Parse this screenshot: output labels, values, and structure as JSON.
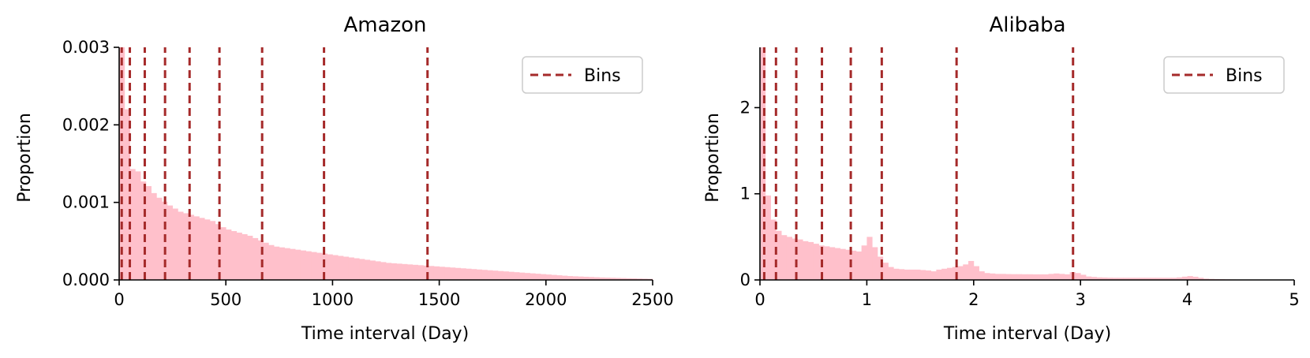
{
  "colors": {
    "histogram": "#ffc0cb",
    "bins": "#a52a2a",
    "axis": "#000000"
  },
  "chart_data": [
    {
      "type": "bar",
      "title": "Amazon",
      "xlabel": "Time interval (Day)",
      "ylabel": "Proportion",
      "xlim": [
        0,
        2500
      ],
      "ylim": [
        0,
        0.003
      ],
      "grid": false,
      "xticks": [
        0,
        500,
        1000,
        1500,
        2000,
        2500
      ],
      "yticks": [
        0.0,
        0.001,
        0.002,
        0.003
      ],
      "xtick_labels": [
        "0",
        "500",
        "1000",
        "1500",
        "2000",
        "2500"
      ],
      "ytick_labels": [
        "0.000",
        "0.001",
        "0.002",
        "0.003"
      ],
      "bin_width": 25,
      "bin_edges_start": 0,
      "histogram": [
        0.003,
        0.0022,
        0.00143,
        0.0014,
        0.00127,
        0.00121,
        0.00112,
        0.00106,
        0.00101,
        0.00096,
        0.00092,
        0.00088,
        0.00086,
        0.00084,
        0.00082,
        0.0008,
        0.00078,
        0.00076,
        0.00072,
        0.00068,
        0.00065,
        0.00063,
        0.00061,
        0.00059,
        0.00057,
        0.00054,
        0.00051,
        0.00048,
        0.00045,
        0.00043,
        0.00042,
        0.00041,
        0.0004,
        0.00039,
        0.00038,
        0.00037,
        0.00036,
        0.00035,
        0.00034,
        0.00033,
        0.00032,
        0.00031,
        0.0003,
        0.00029,
        0.00028,
        0.00027,
        0.00026,
        0.00025,
        0.00024,
        0.00023,
        0.00022,
        0.000215,
        0.00021,
        0.000205,
        0.0002,
        0.000195,
        0.00019,
        0.000185,
        0.00018,
        0.000175,
        0.00017,
        0.000165,
        0.00016,
        0.000155,
        0.00015,
        0.000145,
        0.00014,
        0.000135,
        0.00013,
        0.000125,
        0.00012,
        0.000115,
        0.00011,
        0.000105,
        0.0001,
        9.5e-05,
        9e-05,
        8.5e-05,
        8e-05,
        7.5e-05,
        7e-05,
        6.5e-05,
        6e-05,
        5.5e-05,
        5e-05,
        4.7e-05,
        4.4e-05,
        4.1e-05,
        3.8e-05,
        3.5e-05,
        3.2e-05,
        3e-05,
        2.8e-05,
        2.6e-05,
        2.4e-05,
        2.2e-05,
        2e-05,
        1.8e-05,
        1.6e-05,
        1.4e-05
      ],
      "bins_lines": [
        12,
        50,
        120,
        215,
        330,
        470,
        670,
        960,
        1445
      ],
      "legend": {
        "label": "Bins",
        "position": "upper-right"
      }
    },
    {
      "type": "bar",
      "title": "Alibaba",
      "xlabel": "Time interval (Day)",
      "ylabel": "Proportion",
      "xlim": [
        0,
        5
      ],
      "ylim": [
        0,
        2.7
      ],
      "grid": false,
      "xticks": [
        0,
        1,
        2,
        3,
        4,
        5
      ],
      "yticks": [
        0,
        1,
        2
      ],
      "xtick_labels": [
        "0",
        "1",
        "2",
        "3",
        "4",
        "5"
      ],
      "ytick_labels": [
        "0",
        "1",
        "2"
      ],
      "bin_width": 0.05,
      "bin_edges_start": 0,
      "histogram": [
        2.7,
        0.98,
        0.7,
        0.57,
        0.52,
        0.5,
        0.48,
        0.47,
        0.45,
        0.44,
        0.42,
        0.4,
        0.39,
        0.38,
        0.37,
        0.36,
        0.35,
        0.34,
        0.33,
        0.4,
        0.5,
        0.38,
        0.27,
        0.2,
        0.15,
        0.13,
        0.125,
        0.12,
        0.12,
        0.12,
        0.115,
        0.11,
        0.1,
        0.12,
        0.13,
        0.14,
        0.15,
        0.16,
        0.18,
        0.22,
        0.16,
        0.1,
        0.08,
        0.075,
        0.07,
        0.07,
        0.068,
        0.067,
        0.067,
        0.066,
        0.066,
        0.065,
        0.065,
        0.065,
        0.07,
        0.075,
        0.07,
        0.065,
        0.09,
        0.08,
        0.06,
        0.04,
        0.035,
        0.03,
        0.028,
        0.026,
        0.025,
        0.025,
        0.025,
        0.025,
        0.025,
        0.025,
        0.025,
        0.025,
        0.025,
        0.025,
        0.025,
        0.025,
        0.03,
        0.038,
        0.045,
        0.037,
        0.025,
        0.015,
        0.012,
        0.01,
        0.008,
        0.006,
        0.005,
        0.004,
        0.003,
        0.003,
        0.002,
        0.002,
        0.002,
        0.001,
        0.001,
        0.001,
        0.001,
        0.001
      ],
      "bins_lines": [
        0.04,
        0.15,
        0.34,
        0.58,
        0.85,
        1.14,
        1.84,
        2.93
      ],
      "legend": {
        "label": "Bins",
        "position": "upper-right"
      }
    }
  ]
}
